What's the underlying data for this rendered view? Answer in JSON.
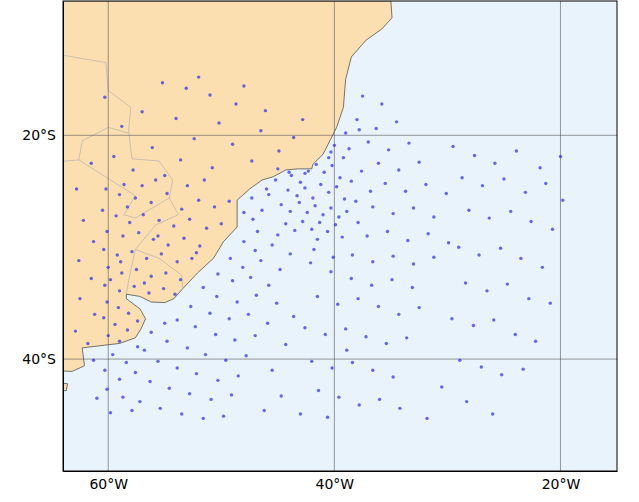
{
  "chart_data": {
    "type": "scatter",
    "color": "#2a2aef",
    "marker": "circle",
    "grid": true,
    "xlim": [
      -64,
      -15
    ],
    "ylim": [
      -50,
      -8
    ],
    "xticks": [
      {
        "value": -60,
        "label": "60°W"
      },
      {
        "value": -40,
        "label": "40°W"
      },
      {
        "value": -20,
        "label": "20°W"
      }
    ],
    "yticks": [
      {
        "value": -20,
        "label": "20°S"
      },
      {
        "value": -40,
        "label": "40°S"
      }
    ],
    "x": [
      -55.2,
      -53.1,
      -51.0,
      -48.7,
      -57.0,
      -54.0,
      -50.2,
      -46.5,
      -58.8,
      -52.4,
      -49.0,
      -56.1,
      -44.9,
      -59.5,
      -53.6,
      -47.3,
      -50.8,
      -57.8,
      -55.0,
      -43.6,
      -46.1,
      -42.8,
      -52.0,
      -60.3,
      -48.0,
      -45.0,
      -51.5,
      -58.6,
      -61.5,
      -62.8,
      -60.2,
      -59.0,
      -57.6,
      -56.2,
      -54.8,
      -53.5,
      -52.0,
      -50.6,
      -49.3,
      -60.5,
      -59.3,
      -58.1,
      -56.9,
      -55.5,
      -54.2,
      -52.8,
      -51.3,
      -50.0,
      -60.1,
      -58.7,
      -57.3,
      -56.0,
      -54.7,
      -53.3,
      -51.9,
      -60.4,
      -59.2,
      -57.9,
      -56.6,
      -55.3,
      -53.9,
      -52.6,
      -60.0,
      -58.8,
      -57.5,
      -56.2,
      -54.9,
      -53.6,
      -60.3,
      -59.0,
      -57.7,
      -56.4,
      -55.1,
      -54.1,
      -60.1,
      -59.1,
      -58.2,
      -60.4,
      -59.4,
      -58.3,
      -60.0,
      -59.0,
      -61.8,
      -62.9,
      -61.2,
      -62.5,
      -61.5,
      -62.6,
      -61.3,
      -62.2,
      -57.0,
      -55.8,
      -53.0,
      -59.8,
      -56.8,
      -55.6,
      -58.3,
      -52.2,
      -57.4,
      -58.9,
      -44.0,
      -43.8,
      -43.0,
      -42.3,
      -41.6,
      -40.9,
      -40.2,
      -39.5,
      -44.1,
      -43.3,
      -42.6,
      -41.9,
      -41.2,
      -40.5,
      -39.8,
      -39.1,
      -44.7,
      -43.9,
      -43.1,
      -42.4,
      -41.7,
      -41.0,
      -40.3,
      -39.6,
      -38.9,
      -44.3,
      -43.5,
      -42.8,
      -42.0,
      -41.3,
      -40.6,
      -39.9,
      -45.2,
      -45.8,
      -46.4,
      -40.5,
      -40.3,
      -39.2,
      -38.5,
      -38.1,
      -37.6,
      -45.0,
      -41.5,
      -39.3,
      -42.6,
      -40.0,
      -38.7,
      -37.9,
      -36.8,
      -47.2,
      -48.0,
      -47.0,
      -49.2,
      -48.1,
      -46.5,
      -50.3,
      -49.0,
      -47.4,
      -45.8,
      -51.6,
      -50.4,
      -48.6,
      -46.9,
      -45.1,
      -52.7,
      -51.0,
      -49.3,
      -47.6,
      -45.9,
      -53.9,
      -52.3,
      -50.5,
      -48.8,
      -47.0,
      -54.8,
      -53.0,
      -51.4,
      -49.6,
      -47.8,
      -55.6,
      -53.9,
      -52.2,
      -50.3,
      -48.5,
      -56.3,
      -54.6,
      -52.8,
      -50.9,
      -49.1,
      -57.2,
      -55.4,
      -53.5,
      -51.6,
      -49.8,
      -46.2,
      -44.7,
      -45.5,
      -44.3,
      -43.6,
      -44.8,
      -59.6,
      -58.4,
      -60.3,
      -59.0,
      -57.6,
      -60.1,
      -58.7,
      -57.9,
      -59.8,
      -56.8,
      -61.3,
      -61.0,
      -56.2,
      -55.0,
      -57.4,
      -37.5,
      -35.8,
      -38.0,
      -36.3,
      -34.5,
      -37.0,
      -35.2,
      -33.4,
      -36.1,
      -34.3,
      -32.5,
      -35.5,
      -33.7,
      -31.9,
      -30.1,
      -36.6,
      -34.8,
      -33.0,
      -31.2,
      -37.1,
      -35.3,
      -33.5,
      -31.7,
      -29.9,
      -38.4,
      -36.6,
      -34.8,
      -33.0,
      -31.2,
      -42.1,
      -40.3,
      -38.5,
      -36.7,
      -34.9,
      -33.1,
      -41.5,
      -39.7,
      -37.9,
      -36.1,
      -34.3,
      -32.5,
      -42.6,
      -40.8,
      -39.0,
      -37.2,
      -35.4,
      -33.6,
      -42.0,
      -40.2,
      -38.4,
      -36.6,
      -34.8,
      -41.4,
      -39.6,
      -37.8,
      -36.0,
      -34.2,
      -40.6,
      -43.0,
      -38.9,
      -29.5,
      -27.6,
      -25.8,
      -23.9,
      -21.8,
      -20.0,
      -28.7,
      -26.9,
      -25.0,
      -23.1,
      -21.3,
      -19.8,
      -28.1,
      -26.3,
      -24.4,
      -22.6,
      -20.7,
      -29.0,
      -27.2,
      -25.3,
      -23.5,
      -21.6,
      -28.4,
      -26.5,
      -24.7,
      -22.8,
      -20.9,
      -29.6,
      -27.7,
      -25.9,
      -24.0,
      -22.2,
      -28.9,
      -27.0,
      -25.2,
      -23.3,
      -30.5,
      -28.3,
      -26.0,
      -31.8,
      -39.0,
      -37.8,
      -46.0,
      -47.3,
      -48.0,
      -46.8,
      -45.5,
      -43.9,
      -41.8,
      -40.1
    ],
    "y": [
      -15.3,
      -15.8,
      -16.4,
      -17.2,
      -17.9,
      -18.5,
      -18.9,
      -19.6,
      -19.2,
      -20.3,
      -20.8,
      -21.1,
      -21.4,
      -21.9,
      -22.2,
      -22.3,
      -22.9,
      -23.1,
      -23.6,
      -20.2,
      -17.8,
      -18.6,
      -14.8,
      -16.6,
      -15.6,
      -23.0,
      -24.0,
      -24.4,
      -22.5,
      -24.8,
      -24.8,
      -25.3,
      -25.6,
      -26.0,
      -25.2,
      -26.6,
      -25.8,
      -26.4,
      -25.9,
      -26.7,
      -27.2,
      -27.8,
      -27.1,
      -27.6,
      -28.1,
      -27.5,
      -28.3,
      -27.9,
      -28.6,
      -29.0,
      -28.7,
      -29.3,
      -29.8,
      -29.2,
      -29.9,
      -30.2,
      -30.7,
      -30.4,
      -31.0,
      -30.6,
      -31.3,
      -31.0,
      -31.8,
      -32.3,
      -32.0,
      -32.6,
      -32.3,
      -32.9,
      -33.4,
      -33.9,
      -33.5,
      -34.1,
      -33.7,
      -34.2,
      -34.9,
      -35.4,
      -35.9,
      -36.3,
      -36.9,
      -37.4,
      -37.9,
      -38.4,
      -38.6,
      -37.5,
      -36.0,
      -34.6,
      -32.8,
      -31.2,
      -29.5,
      -27.6,
      -24.5,
      -24.0,
      -24.5,
      -32.9,
      -33.2,
      -29.0,
      -26.4,
      -30.5,
      -36.6,
      -31.3,
      -23.3,
      -23.6,
      -24.2,
      -23.2,
      -22.6,
      -23.3,
      -22.7,
      -23.8,
      -24.9,
      -25.4,
      -24.7,
      -25.6,
      -24.4,
      -25.1,
      -24.6,
      -25.7,
      -26.2,
      -26.8,
      -26.0,
      -26.9,
      -26.3,
      -27.1,
      -26.5,
      -27.3,
      -26.8,
      -27.9,
      -28.5,
      -27.7,
      -28.4,
      -27.8,
      -28.6,
      -28.0,
      -24.0,
      -25.3,
      -26.7,
      -22.0,
      -21.5,
      -22.0,
      -24.1,
      -25.9,
      -23.2,
      -28.9,
      -29.3,
      -29.1,
      -23.4,
      -20.9,
      -21.2,
      -27.8,
      -25.0,
      -27.5,
      -29.5,
      -30.3,
      -31.0,
      -31.8,
      -31.2,
      -32.4,
      -33.0,
      -32.7,
      -33.4,
      -33.6,
      -34.4,
      -34.9,
      -34.3,
      -35.0,
      -35.3,
      -35.9,
      -36.4,
      -36.0,
      -36.8,
      -36.5,
      -37.1,
      -37.8,
      -38.3,
      -37.9,
      -38.4,
      -39.0,
      -39.6,
      -40.1,
      -39.7,
      -40.2,
      -40.8,
      -41.3,
      -41.9,
      -41.5,
      -42.0,
      -42.6,
      -43.1,
      -43.6,
      -43.2,
      -43.8,
      -44.4,
      -44.9,
      -45.3,
      -45.1,
      -44.6,
      -43.3,
      -41.0,
      -38.7,
      -36.2,
      -32.0,
      -39.6,
      -40.3,
      -41.0,
      -41.8,
      -41.2,
      -42.7,
      -43.4,
      -44.6,
      -44.8,
      -39.2,
      -40.1,
      -43.5,
      -37.6,
      -36.8,
      -38.9,
      -16.5,
      -17.2,
      -18.6,
      -19.4,
      -18.8,
      -20.6,
      -21.3,
      -20.7,
      -22.5,
      -23.1,
      -22.4,
      -24.3,
      -25.0,
      -24.4,
      -25.2,
      -26.4,
      -27.0,
      -26.5,
      -27.3,
      -29.0,
      -28.6,
      -29.4,
      -28.8,
      -29.6,
      -30.7,
      -31.3,
      -30.8,
      -31.5,
      -30.9,
      -31.4,
      -32.2,
      -32.8,
      -33.4,
      -32.9,
      -33.6,
      -34.4,
      -35.1,
      -34.6,
      -35.3,
      -36.0,
      -35.4,
      -37.2,
      -37.8,
      -37.3,
      -38.0,
      -38.6,
      -38.1,
      -40.2,
      -40.8,
      -40.3,
      -41.0,
      -41.6,
      -42.8,
      -43.4,
      -44.1,
      -43.6,
      -44.4,
      -45.2,
      -44.9,
      -39.2,
      -21.0,
      -21.8,
      -22.5,
      -21.4,
      -22.9,
      -21.9,
      -23.8,
      -24.5,
      -23.9,
      -25.1,
      -24.3,
      -25.8,
      -26.7,
      -27.4,
      -26.8,
      -27.7,
      -28.4,
      -30.0,
      -30.7,
      -30.1,
      -31.0,
      -31.8,
      -33.2,
      -33.9,
      -33.3,
      -34.6,
      -35.0,
      -36.4,
      -37.0,
      -36.5,
      -37.8,
      -38.4,
      -40.1,
      -40.7,
      -41.4,
      -40.9,
      -42.5,
      -43.8,
      -44.9,
      -45.3,
      -19.8,
      -19.5,
      -24.8,
      -25.6,
      -26.9,
      -28.6,
      -29.8,
      -30.6,
      -30.2,
      -30.9
    ]
  }
}
